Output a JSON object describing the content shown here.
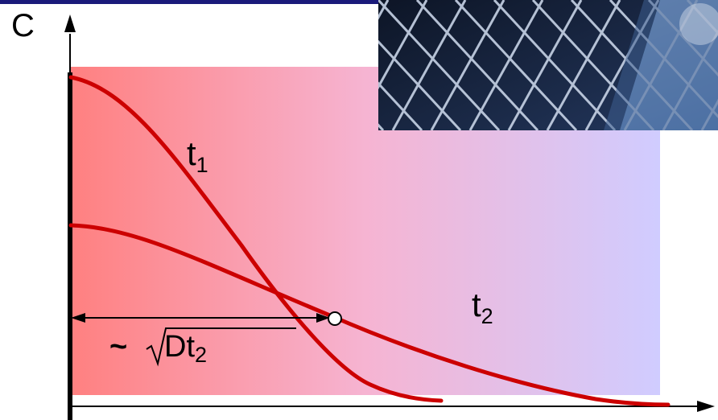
{
  "labels": {
    "y_axis": "C",
    "curve1_main": "t",
    "curve1_sub": "1",
    "curve2_main": "t",
    "curve2_sub": "2",
    "distance_prefix": "~",
    "distance_radicand": "Dt",
    "distance_sub": "2"
  },
  "colors": {
    "curve": "#cc0000",
    "background_left": "#ff8080",
    "background_mid": "#f6b4d2",
    "background_right": "#d0ccff",
    "axis": "#000000",
    "top_bar": "#1a1a7a",
    "photo_cells": "#14213b",
    "photo_sky": "#6d95c8"
  },
  "photo": {
    "subject": "solar-panel-cells"
  }
}
